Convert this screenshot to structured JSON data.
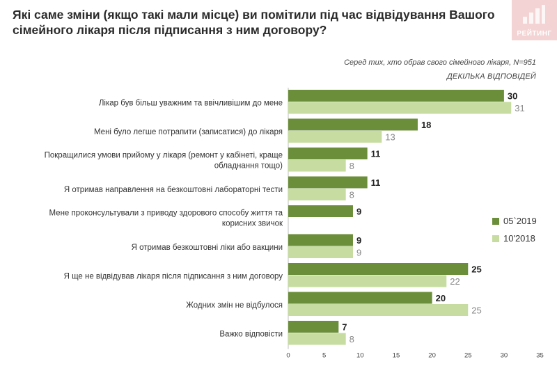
{
  "header": {
    "title": "Які саме зміни (якщо такі мали місце) ви помітили під час відвідування Вашого сімейного лікаря після підписання з ним договору?",
    "subtitle": "Серед тих, хто обрав  свого сімейного лікаря, N=951",
    "multiple_answers": "ДЕКІЛЬКА ВІДПОВІДЕЙ",
    "logo_text": "РЕЙТИНГ"
  },
  "colors": {
    "series_a": "#6b8e3a",
    "series_b": "#c6dca0",
    "axis": "#bfbfbf"
  },
  "chart_data": {
    "type": "bar",
    "orientation": "horizontal",
    "title": "Які саме зміни (якщо такі мали місце) ви помітили під час відвідування Вашого сімейного лікаря після підписання з ним договору?",
    "categories": [
      [
        "Лікар був більш уважним та ввічливішим до мене"
      ],
      [
        "Мені було легше потрапити (записатися) до лікаря"
      ],
      [
        "Покращилися умови прийому у лікаря (ремонт у кабінеті, краще",
        "обладнання тощо)"
      ],
      [
        "Я отримав направлення на безкоштовні лабораторні тести"
      ],
      [
        "Мене проконсультували з приводу здорового способу життя та",
        "корисних звичок"
      ],
      [
        "Я отримав безкоштовні ліки або вакцини"
      ],
      [
        "Я ще не відвідував лікаря після підписання з ним договору"
      ],
      [
        "Жодних змін не відбулося"
      ],
      [
        "Важко відповісти"
      ]
    ],
    "series": [
      {
        "name": "05`2019",
        "values": [
          30,
          18,
          11,
          11,
          9,
          9,
          25,
          20,
          7
        ]
      },
      {
        "name": "10'2018",
        "values": [
          31,
          13,
          8,
          8,
          null,
          9,
          22,
          25,
          8
        ]
      }
    ],
    "xlim": [
      0,
      35
    ],
    "xticks": [
      0,
      5,
      10,
      15,
      20,
      25,
      30,
      35
    ],
    "legend_position": "right"
  }
}
